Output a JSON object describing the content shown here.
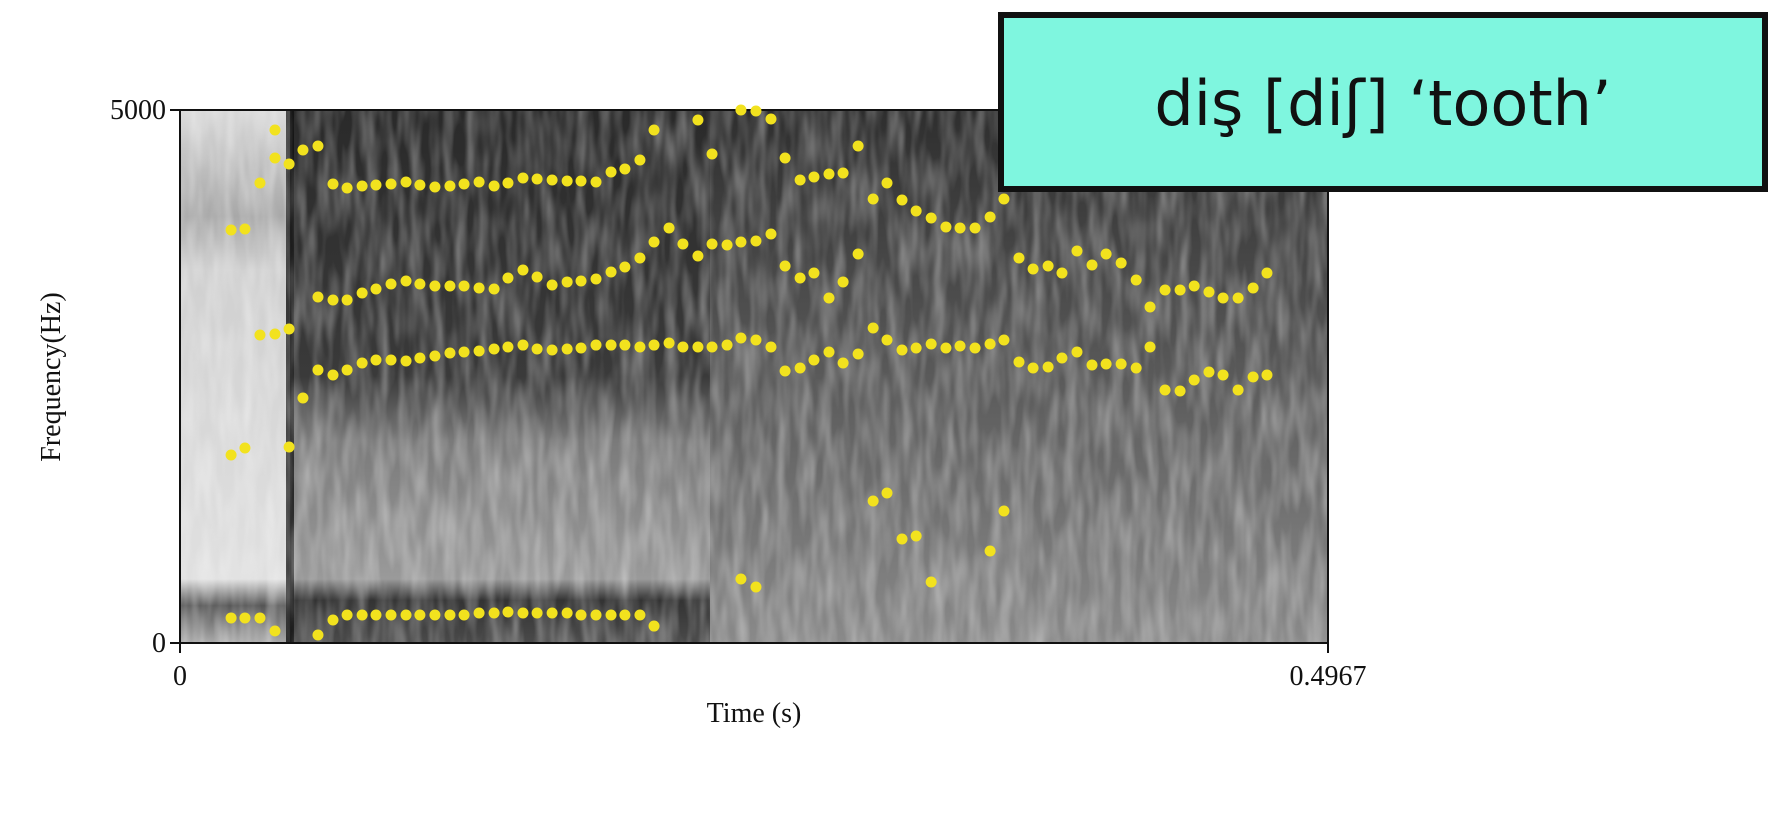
{
  "chart_data": {
    "type": "scatter",
    "title": "diş [diʃ] ‘tooth’",
    "x_label": "Time (s)",
    "y_label": "Frequency(Hz)",
    "color": "#f2e21e",
    "xlim": [
      0,
      0.4967
    ],
    "ylim": [
      0,
      5000
    ],
    "xticks": [
      0,
      0.4967
    ],
    "yticks": [
      0,
      5000
    ],
    "x": [
      0.0221,
      0.0281,
      0.0346,
      0.0411,
      0.0597,
      0.0662,
      0.0723,
      0.0788,
      0.0848,
      0.0913,
      0.0978,
      0.1038,
      0.1103,
      0.1168,
      0.1229,
      0.1294,
      0.1359,
      0.1419,
      0.1484,
      0.1545,
      0.161,
      0.1675,
      0.1735,
      0.18,
      0.1865,
      0.1925,
      0.199,
      0.2051,
      0.2427,
      0.2492,
      0.0221,
      0.0281,
      0.0472,
      0.0346,
      0.0411,
      0.0472,
      0.0532,
      0.0597,
      0.0662,
      0.0723,
      0.0788,
      0.0848,
      0.0913,
      0.0978,
      0.1038,
      0.1103,
      0.1168,
      0.1229,
      0.1294,
      0.1359,
      0.1419,
      0.1484,
      0.1545,
      0.161,
      0.1675,
      0.1735,
      0.18,
      0.1865,
      0.1925,
      0.199,
      0.2051,
      0.2116,
      0.2176,
      0.2241,
      0.2302,
      0.2367,
      0.2427,
      0.2492,
      0.2557,
      0.2618,
      0.2683,
      0.2743,
      0.2808,
      0.2869,
      0.2934,
      0.2999,
      0.3059,
      0.3124,
      0.3185,
      0.325,
      0.3314,
      0.3375,
      0.344,
      0.3505,
      0.3565,
      0.363,
      0.3691,
      0.3756,
      0.3816,
      0.3881,
      0.3946,
      0.4007,
      0.4072,
      0.4137,
      0.4197,
      0.4262,
      0.4327,
      0.4388,
      0.4452,
      0.4513,
      0.4578,
      0.4643,
      0.4703,
      0.0597,
      0.0662,
      0.0723,
      0.0788,
      0.0848,
      0.0913,
      0.0978,
      0.1038,
      0.1103,
      0.1168,
      0.1229,
      0.1294,
      0.1359,
      0.1419,
      0.1484,
      0.1545,
      0.161,
      0.1675,
      0.1735,
      0.18,
      0.1865,
      0.1925,
      0.199,
      0.2051,
      0.2116,
      0.2176,
      0.2241,
      0.2302,
      0.2367,
      0.2427,
      0.2492,
      0.2557,
      0.2618,
      0.2683,
      0.2743,
      0.2808,
      0.2869,
      0.2934,
      0.363,
      0.3691,
      0.3756,
      0.3816,
      0.3881,
      0.3946,
      0.4007,
      0.4072,
      0.4137,
      0.4197,
      0.4262,
      0.4327,
      0.4388,
      0.4452,
      0.4513,
      0.4578,
      0.4643,
      0.4703,
      0.0221,
      0.0281,
      0.0346,
      0.0411,
      0.0411,
      0.0472,
      0.0532,
      0.0597,
      0.0662,
      0.0723,
      0.0788,
      0.0848,
      0.0913,
      0.0978,
      0.1038,
      0.1103,
      0.1168,
      0.1229,
      0.1294,
      0.1359,
      0.1419,
      0.1484,
      0.1545,
      0.161,
      0.1675,
      0.1735,
      0.18,
      0.1865,
      0.1925,
      0.199,
      0.2051,
      0.2241,
      0.2302,
      0.2427,
      0.2492,
      0.2557,
      0.2618,
      0.2683,
      0.2743,
      0.2808,
      0.2869,
      0.2934,
      0.2999,
      0.3059,
      0.3124,
      0.3185,
      0.325,
      0.3314,
      0.3375,
      0.344,
      0.3505,
      0.3565,
      0.2999,
      0.3059,
      0.3124,
      0.3185,
      0.325,
      0.3505,
      0.3565
    ],
    "values": [
      235,
      235,
      235,
      113,
      75,
      216,
      263,
      263,
      263,
      263,
      263,
      263,
      263,
      263,
      263,
      281,
      281,
      291,
      281,
      281,
      281,
      281,
      263,
      263,
      263,
      263,
      263,
      159,
      600,
      525,
      1764,
      1829,
      1839,
      2889,
      2899,
      2946,
      2298,
      2561,
      2514,
      2561,
      2627,
      2655,
      2655,
      2645,
      2674,
      2692,
      2720,
      2730,
      2739,
      2758,
      2777,
      2795,
      2758,
      2749,
      2758,
      2767,
      2795,
      2795,
      2795,
      2777,
      2795,
      2814,
      2777,
      2777,
      2777,
      2795,
      2861,
      2842,
      2777,
      2552,
      2580,
      2655,
      2730,
      2627,
      2711,
      2955,
      2842,
      2749,
      2767,
      2805,
      2767,
      2786,
      2767,
      2805,
      2842,
      2636,
      2580,
      2589,
      2674,
      2730,
      2608,
      2617,
      2617,
      2580,
      2777,
      2373,
      2364,
      2467,
      2542,
      2514,
      2373,
      2495,
      2514,
      3246,
      3218,
      3218,
      3283,
      3321,
      3368,
      3396,
      3368,
      3349,
      3349,
      3349,
      3330,
      3321,
      3424,
      3499,
      3433,
      3358,
      3387,
      3396,
      3415,
      3480,
      3527,
      3612,
      3762,
      3893,
      3743,
      3630,
      3743,
      3734,
      3762,
      3771,
      3837,
      3537,
      3424,
      3471,
      3236,
      3387,
      3649,
      3612,
      3508,
      3537,
      3471,
      3677,
      3546,
      3649,
      3565,
      3405,
      3152,
      3311,
      3311,
      3349,
      3293,
      3236,
      3236,
      3330,
      3471,
      3874,
      3884,
      4315,
      4550,
      4812,
      4493,
      4625,
      4662,
      4306,
      4268,
      4287,
      4296,
      4306,
      4325,
      4296,
      4278,
      4287,
      4306,
      4325,
      4287,
      4315,
      4362,
      4353,
      4343,
      4334,
      4334,
      4325,
      4418,
      4447,
      4531,
      4812,
      4906,
      4587,
      5000,
      4991,
      4916,
      4550,
      4343,
      4372,
      4400,
      4409,
      4662,
      4165,
      4315,
      4156,
      4053,
      3987,
      3903,
      3893,
      3893,
      3996,
      4165,
      1332,
      1407,
      976,
      1004,
      572,
      863,
      1238
    ]
  }
}
